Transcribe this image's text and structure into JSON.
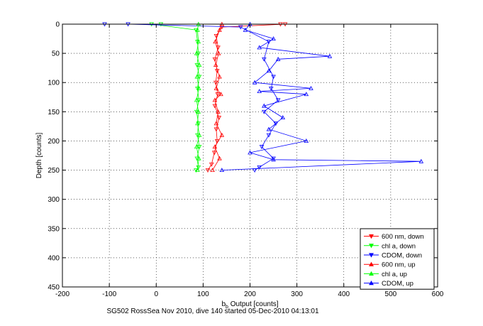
{
  "figure": {
    "caption": "SG502 RossSea Nov 2010, dive 140 started 05-Dec-2010 04:13:01"
  },
  "chart_data": {
    "type": "line",
    "xlabel_main": "b",
    "xlabel_sub": "b",
    "xlabel_rest": " Output [counts]",
    "ylabel": "Depth [counts]",
    "xlim": [
      -200,
      600
    ],
    "ylim": [
      0,
      450
    ],
    "y_reversed": true,
    "grid": true,
    "x_ticks": [
      -200,
      -100,
      0,
      100,
      200,
      300,
      400,
      500,
      600
    ],
    "y_ticks": [
      0,
      50,
      100,
      150,
      200,
      250,
      300,
      350,
      400,
      450
    ],
    "legend_position": "bottom-right",
    "series": [
      {
        "name": "600 nm, down",
        "color": "#ff0000",
        "marker": "triangle-down",
        "style": "line",
        "points": [
          [
            265,
            0
          ],
          [
            275,
            0
          ],
          [
            140,
            5
          ],
          [
            128,
            20
          ],
          [
            132,
            40
          ],
          [
            125,
            60
          ],
          [
            130,
            80
          ],
          [
            127,
            100
          ],
          [
            131,
            120
          ],
          [
            125,
            140
          ],
          [
            134,
            160
          ],
          [
            128,
            180
          ],
          [
            130,
            200
          ],
          [
            124,
            220
          ],
          [
            118,
            240
          ],
          [
            110,
            250
          ]
        ]
      },
      {
        "name": "chl a, down",
        "color": "#00ff00",
        "marker": "triangle-down",
        "style": "line",
        "points": [
          [
            10,
            0
          ],
          [
            -10,
            0
          ],
          [
            85,
            10
          ],
          [
            88,
            30
          ],
          [
            90,
            50
          ],
          [
            87,
            70
          ],
          [
            92,
            90
          ],
          [
            88,
            110
          ],
          [
            91,
            130
          ],
          [
            86,
            150
          ],
          [
            90,
            170
          ],
          [
            88,
            190
          ],
          [
            92,
            210
          ],
          [
            87,
            230
          ],
          [
            90,
            245
          ],
          [
            85,
            250
          ]
        ]
      },
      {
        "name": "CDOM, down",
        "color": "#0000ff",
        "marker": "triangle-down",
        "style": "line",
        "points": [
          [
            -110,
            0
          ],
          [
            -60,
            0
          ],
          [
            180,
            5
          ],
          [
            240,
            30
          ],
          [
            230,
            60
          ],
          [
            250,
            90
          ],
          [
            245,
            110
          ],
          [
            260,
            130
          ],
          [
            230,
            150
          ],
          [
            255,
            170
          ],
          [
            240,
            190
          ],
          [
            225,
            210
          ],
          [
            250,
            230
          ],
          [
            220,
            245
          ],
          [
            210,
            250
          ]
        ]
      },
      {
        "name": "600 nm, up",
        "color": "#ff0000",
        "marker": "triangle-up",
        "style": "line",
        "points": [
          [
            120,
            250
          ],
          [
            135,
            230
          ],
          [
            125,
            210
          ],
          [
            140,
            190
          ],
          [
            128,
            170
          ],
          [
            132,
            150
          ],
          [
            125,
            130
          ],
          [
            138,
            120
          ],
          [
            128,
            110
          ],
          [
            135,
            90
          ],
          [
            127,
            70
          ],
          [
            133,
            50
          ],
          [
            126,
            30
          ],
          [
            135,
            10
          ],
          [
            140,
            0
          ]
        ]
      },
      {
        "name": "chl a, up",
        "color": "#00ff00",
        "marker": "triangle-up",
        "style": "line",
        "points": [
          [
            88,
            250
          ],
          [
            91,
            230
          ],
          [
            86,
            210
          ],
          [
            92,
            190
          ],
          [
            88,
            170
          ],
          [
            90,
            150
          ],
          [
            86,
            130
          ],
          [
            91,
            110
          ],
          [
            87,
            90
          ],
          [
            92,
            70
          ],
          [
            86,
            50
          ],
          [
            90,
            30
          ],
          [
            88,
            10
          ],
          [
            90,
            0
          ]
        ]
      },
      {
        "name": "CDOM, up",
        "color": "#0000ff",
        "marker": "triangle-up",
        "style": "line",
        "points": [
          [
            140,
            250
          ],
          [
            565,
            235
          ],
          [
            250,
            232
          ],
          [
            200,
            220
          ],
          [
            320,
            200
          ],
          [
            240,
            180
          ],
          [
            270,
            160
          ],
          [
            230,
            140
          ],
          [
            320,
            120
          ],
          [
            220,
            115
          ],
          [
            330,
            110
          ],
          [
            210,
            100
          ],
          [
            240,
            80
          ],
          [
            260,
            60
          ],
          [
            370,
            55
          ],
          [
            220,
            40
          ],
          [
            250,
            25
          ],
          [
            190,
            10
          ],
          [
            200,
            0
          ]
        ]
      }
    ]
  }
}
